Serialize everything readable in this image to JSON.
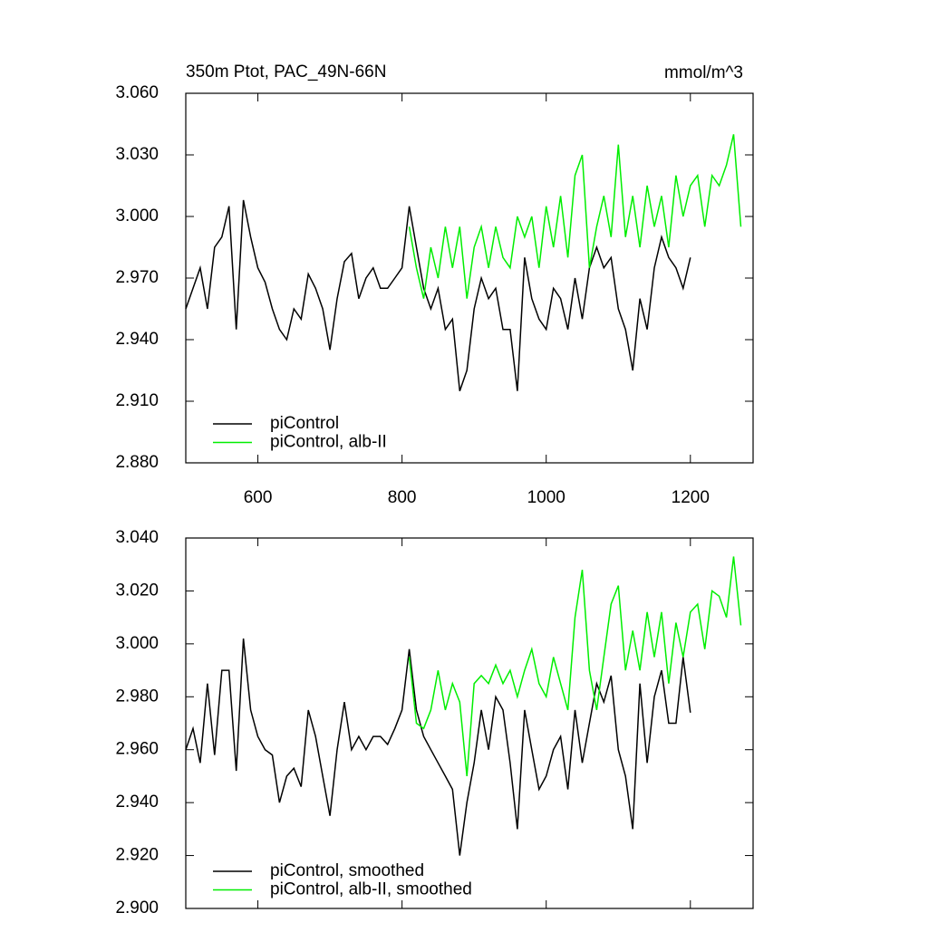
{
  "chart_data": [
    {
      "type": "line",
      "title": "350m Ptot, PAC_49N-66N",
      "units": "mmol/m^3",
      "xlim": [
        500,
        1287
      ],
      "xticks": [
        600,
        800,
        1000,
        1200
      ],
      "ylim": [
        2.88,
        3.06
      ],
      "yticks": [
        {
          "value": 2.88,
          "label": "2.880"
        },
        {
          "value": 2.91,
          "label": "2.910"
        },
        {
          "value": 2.94,
          "label": "2.940"
        },
        {
          "value": 2.97,
          "label": "2.970"
        },
        {
          "value": 3.0,
          "label": "3.000"
        },
        {
          "value": 3.03,
          "label": "3.030"
        },
        {
          "value": 3.06,
          "label": "3.060"
        }
      ],
      "series": [
        {
          "name": "piControl",
          "color": "#000000",
          "x": [
            500,
            510,
            520,
            530,
            540,
            550,
            560,
            570,
            580,
            590,
            600,
            610,
            620,
            630,
            640,
            650,
            660,
            670,
            680,
            690,
            700,
            710,
            720,
            730,
            740,
            750,
            760,
            770,
            780,
            790,
            800,
            810,
            820,
            830,
            840,
            850,
            860,
            870,
            880,
            890,
            900,
            910,
            920,
            930,
            940,
            950,
            960,
            970,
            980,
            990,
            1000,
            1010,
            1020,
            1030,
            1040,
            1050,
            1060,
            1070,
            1080,
            1090,
            1100,
            1110,
            1120,
            1130,
            1140,
            1150,
            1160,
            1170,
            1180,
            1190,
            1200
          ],
          "values": [
            2.955,
            2.965,
            2.975,
            2.955,
            2.985,
            2.99,
            3.005,
            2.945,
            3.008,
            2.99,
            2.975,
            2.968,
            2.955,
            2.945,
            2.94,
            2.955,
            2.95,
            2.972,
            2.965,
            2.955,
            2.935,
            2.96,
            2.978,
            2.982,
            2.96,
            2.97,
            2.975,
            2.965,
            2.965,
            2.97,
            2.975,
            3.005,
            2.985,
            2.965,
            2.955,
            2.965,
            2.945,
            2.95,
            2.915,
            2.925,
            2.955,
            2.97,
            2.96,
            2.965,
            2.945,
            2.945,
            2.915,
            2.98,
            2.96,
            2.95,
            2.945,
            2.965,
            2.96,
            2.945,
            2.97,
            2.95,
            2.975,
            2.985,
            2.975,
            2.98,
            2.955,
            2.945,
            2.925,
            2.96,
            2.945,
            2.975,
            2.99,
            2.98,
            2.975,
            2.965,
            2.98
          ]
        },
        {
          "name": "piControl, alb-II",
          "color": "#00ee00",
          "x": [
            810,
            820,
            830,
            840,
            850,
            860,
            870,
            880,
            890,
            900,
            910,
            920,
            930,
            940,
            950,
            960,
            970,
            980,
            990,
            1000,
            1010,
            1020,
            1030,
            1040,
            1050,
            1060,
            1070,
            1080,
            1090,
            1100,
            1110,
            1120,
            1130,
            1140,
            1150,
            1160,
            1170,
            1180,
            1190,
            1200,
            1210,
            1220,
            1230,
            1240,
            1250,
            1260,
            1270
          ],
          "values": [
            2.995,
            2.975,
            2.96,
            2.985,
            2.97,
            2.995,
            2.975,
            2.995,
            2.96,
            2.985,
            2.995,
            2.975,
            2.995,
            2.98,
            2.975,
            3.0,
            2.99,
            3.0,
            2.975,
            3.005,
            2.985,
            3.01,
            2.98,
            3.02,
            3.03,
            2.975,
            2.995,
            3.01,
            2.99,
            3.035,
            2.99,
            3.01,
            2.985,
            3.015,
            2.995,
            3.01,
            2.985,
            3.02,
            3.0,
            3.015,
            3.02,
            2.995,
            3.02,
            3.015,
            3.025,
            3.04,
            2.995
          ]
        }
      ]
    },
    {
      "type": "line",
      "xlim": [
        500,
        1287
      ],
      "ylim": [
        2.9,
        3.04
      ],
      "yticks": [
        {
          "value": 2.9,
          "label": "2.900"
        },
        {
          "value": 2.92,
          "label": "2.920"
        },
        {
          "value": 2.94,
          "label": "2.940"
        },
        {
          "value": 2.96,
          "label": "2.960"
        },
        {
          "value": 2.98,
          "label": "2.980"
        },
        {
          "value": 3.0,
          "label": "3.000"
        },
        {
          "value": 3.02,
          "label": "3.020"
        },
        {
          "value": 3.04,
          "label": "3.040"
        }
      ],
      "series": [
        {
          "name": "piControl, smoothed",
          "color": "#000000",
          "x": [
            500,
            510,
            520,
            530,
            540,
            550,
            560,
            570,
            580,
            590,
            600,
            610,
            620,
            630,
            640,
            650,
            660,
            670,
            680,
            690,
            700,
            710,
            720,
            730,
            740,
            750,
            760,
            770,
            780,
            790,
            800,
            810,
            820,
            830,
            840,
            850,
            860,
            870,
            880,
            890,
            900,
            910,
            920,
            930,
            940,
            950,
            960,
            970,
            980,
            990,
            1000,
            1010,
            1020,
            1030,
            1040,
            1050,
            1060,
            1070,
            1080,
            1090,
            1100,
            1110,
            1120,
            1130,
            1140,
            1150,
            1160,
            1170,
            1180,
            1190,
            1200
          ],
          "values": [
            2.96,
            2.968,
            2.955,
            2.985,
            2.958,
            2.99,
            2.99,
            2.952,
            3.002,
            2.975,
            2.965,
            2.96,
            2.958,
            2.94,
            2.95,
            2.953,
            2.946,
            2.975,
            2.965,
            2.95,
            2.935,
            2.96,
            2.978,
            2.96,
            2.965,
            2.96,
            2.965,
            2.965,
            2.962,
            2.968,
            2.975,
            2.998,
            2.975,
            2.965,
            2.96,
            2.955,
            2.95,
            2.945,
            2.92,
            2.94,
            2.955,
            2.975,
            2.96,
            2.98,
            2.975,
            2.955,
            2.93,
            2.975,
            2.96,
            2.945,
            2.95,
            2.96,
            2.965,
            2.945,
            2.975,
            2.955,
            2.97,
            2.985,
            2.978,
            2.988,
            2.96,
            2.95,
            2.93,
            2.985,
            2.955,
            2.98,
            2.99,
            2.97,
            2.97,
            2.995,
            2.974
          ]
        },
        {
          "name": "piControl, alb-II, smoothed",
          "color": "#00ee00",
          "x": [
            810,
            820,
            830,
            840,
            850,
            860,
            870,
            880,
            890,
            900,
            910,
            920,
            930,
            940,
            950,
            960,
            970,
            980,
            990,
            1000,
            1010,
            1020,
            1030,
            1040,
            1050,
            1060,
            1070,
            1080,
            1090,
            1100,
            1110,
            1120,
            1130,
            1140,
            1150,
            1160,
            1170,
            1180,
            1190,
            1200,
            1210,
            1220,
            1230,
            1240,
            1250,
            1260,
            1270
          ],
          "values": [
            2.995,
            2.97,
            2.968,
            2.975,
            2.99,
            2.975,
            2.985,
            2.978,
            2.95,
            2.985,
            2.988,
            2.985,
            2.992,
            2.985,
            2.99,
            2.98,
            2.99,
            2.998,
            2.985,
            2.98,
            2.995,
            2.985,
            2.975,
            3.01,
            3.028,
            2.99,
            2.975,
            2.995,
            3.015,
            3.022,
            2.99,
            3.005,
            2.99,
            3.012,
            2.995,
            3.012,
            2.985,
            3.008,
            2.995,
            3.012,
            3.015,
            2.998,
            3.02,
            3.018,
            3.01,
            3.033,
            3.007
          ]
        }
      ]
    }
  ]
}
